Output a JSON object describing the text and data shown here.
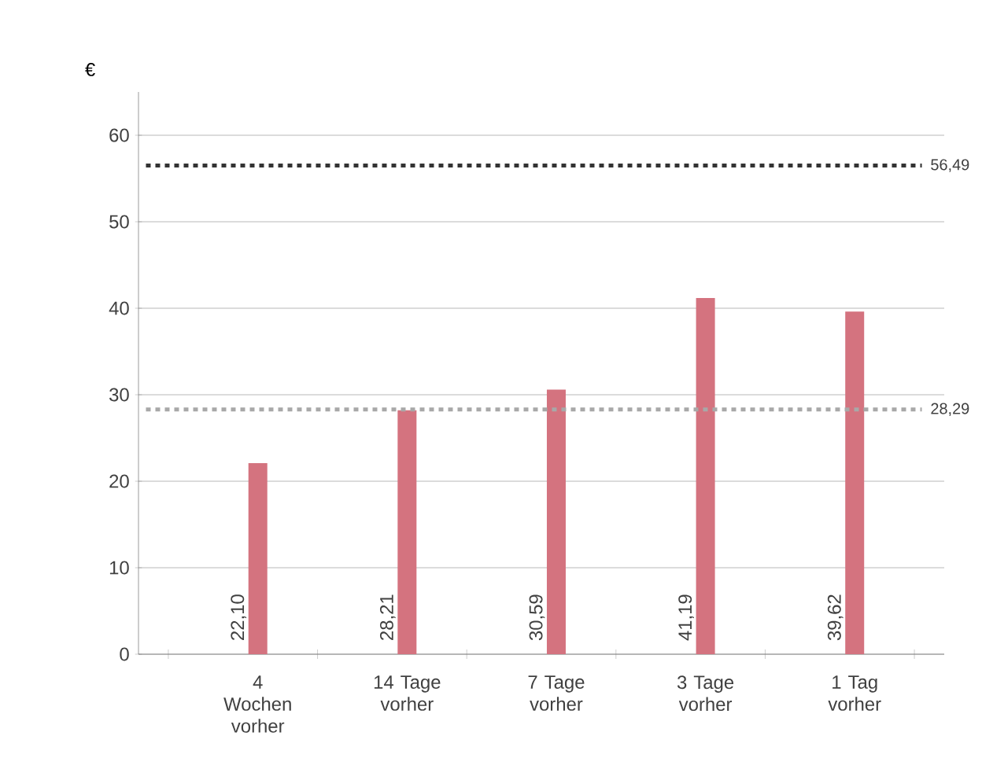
{
  "chart_data": {
    "type": "bar",
    "ylabel": "€",
    "categories": [
      "4 Wochen vorher",
      "14 Tage vorher",
      "7 Tage vorher",
      "3 Tage vorher",
      "1 Tag vorher"
    ],
    "values": [
      22.1,
      28.21,
      30.59,
      41.19,
      39.62
    ],
    "value_labels": [
      "22,10",
      "28,21",
      "30,59",
      "41,19",
      "39,62"
    ],
    "color": "#d4737f",
    "ylim": [
      0,
      65
    ],
    "yticks": [
      0,
      10,
      20,
      30,
      40,
      50,
      60
    ],
    "grid": "y",
    "ref_lines": [
      {
        "axis": "y",
        "value": 56.49,
        "label": "56,49",
        "color": "#333333",
        "line_style": "dotted"
      },
      {
        "axis": "y",
        "value": 28.29,
        "label": "28,29",
        "color": "#a8a8a8",
        "line_style": "dotted"
      }
    ]
  }
}
